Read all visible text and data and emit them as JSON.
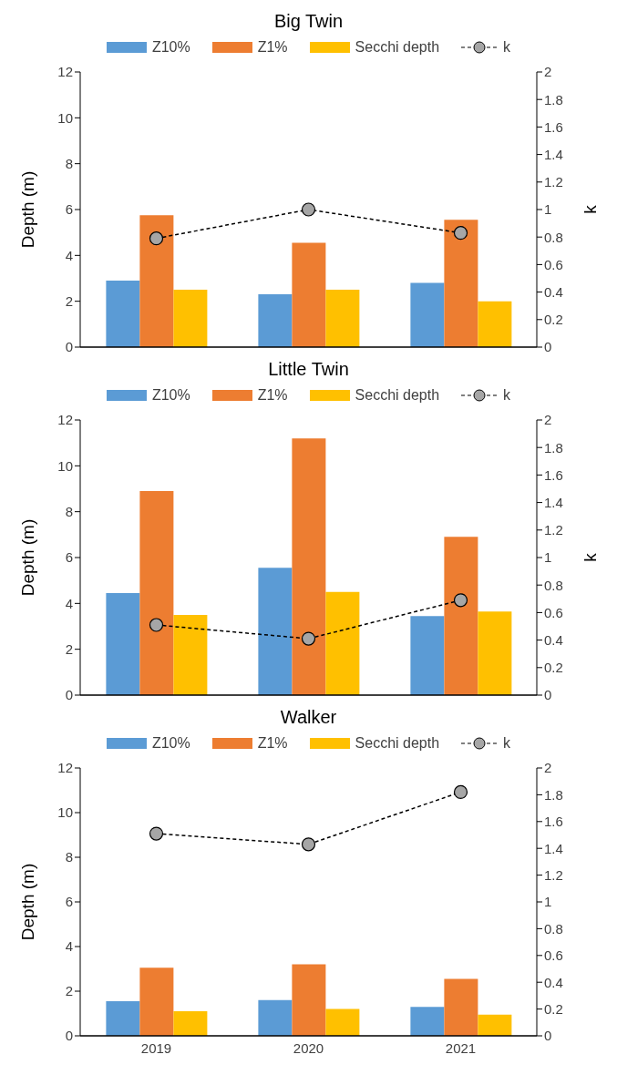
{
  "chart_data": [
    {
      "type": "bar",
      "title": "Big Twin",
      "ylabel": "Depth (m)",
      "y2label": "k",
      "categories": [
        "2019",
        "2020",
        "2021"
      ],
      "tick_labels": "y",
      "legend": "top",
      "marker": "circle",
      "line_style": "dashed",
      "ylim": [
        0,
        12
      ],
      "yticks": [
        0,
        2,
        4,
        6,
        8,
        10,
        12
      ],
      "y2lim": [
        0,
        2
      ],
      "y2ticks": [
        0,
        0.2,
        0.4,
        0.6,
        0.8,
        1,
        1.2,
        1.4,
        1.6,
        1.8,
        2
      ],
      "series": [
        {
          "name": "Z10%",
          "color": "#5b9bd5",
          "values": [
            2.9,
            2.3,
            2.8
          ]
        },
        {
          "name": "Z1%",
          "color": "#ed7d31",
          "values": [
            5.75,
            4.55,
            5.55
          ]
        },
        {
          "name": "Secchi depth",
          "color": "#ffc000",
          "values": [
            2.5,
            2.5,
            2.0
          ]
        },
        {
          "name": "k",
          "type": "line",
          "axis": "y2",
          "color": "#a6a6a6",
          "values": [
            0.79,
            1.0,
            0.83
          ]
        }
      ]
    },
    {
      "type": "bar",
      "title": "Little Twin",
      "ylabel": "Depth (m)",
      "y2label": "k",
      "categories": [
        "2019",
        "2020",
        "2021"
      ],
      "tick_labels": "y",
      "legend": "top",
      "marker": "circle",
      "line_style": "dashed",
      "ylim": [
        0,
        12
      ],
      "yticks": [
        0,
        2,
        4,
        6,
        8,
        10,
        12
      ],
      "y2lim": [
        0,
        2
      ],
      "y2ticks": [
        0,
        0.2,
        0.4,
        0.6,
        0.8,
        1,
        1.2,
        1.4,
        1.6,
        1.8,
        2
      ],
      "series": [
        {
          "name": "Z10%",
          "color": "#5b9bd5",
          "values": [
            4.45,
            5.55,
            3.45
          ]
        },
        {
          "name": "Z1%",
          "color": "#ed7d31",
          "values": [
            8.9,
            11.2,
            6.9
          ]
        },
        {
          "name": "Secchi depth",
          "color": "#ffc000",
          "values": [
            3.5,
            4.5,
            3.65
          ]
        },
        {
          "name": "k",
          "type": "line",
          "axis": "y2",
          "color": "#a6a6a6",
          "values": [
            0.51,
            0.41,
            0.69
          ]
        }
      ]
    },
    {
      "type": "bar",
      "title": "Walker",
      "ylabel": "Depth (m)",
      "categories": [
        "2019",
        "2020",
        "2021"
      ],
      "legend": "top",
      "marker": "circle",
      "line_style": "dashed",
      "ylim": [
        0,
        12
      ],
      "yticks": [
        0,
        2,
        4,
        6,
        8,
        10,
        12
      ],
      "y2lim": [
        0,
        2
      ],
      "y2ticks": [
        0,
        0.2,
        0.4,
        0.6,
        0.8,
        1,
        1.2,
        1.4,
        1.6,
        1.8,
        2
      ],
      "series": [
        {
          "name": "Z10%",
          "color": "#5b9bd5",
          "values": [
            1.55,
            1.6,
            1.3
          ]
        },
        {
          "name": "Z1%",
          "color": "#ed7d31",
          "values": [
            3.05,
            3.2,
            2.55
          ]
        },
        {
          "name": "Secchi depth",
          "color": "#ffc000",
          "values": [
            1.1,
            1.2,
            0.95
          ]
        },
        {
          "name": "k",
          "type": "line",
          "axis": "y2",
          "color": "#a6a6a6",
          "values": [
            1.51,
            1.43,
            1.82
          ]
        }
      ]
    }
  ]
}
